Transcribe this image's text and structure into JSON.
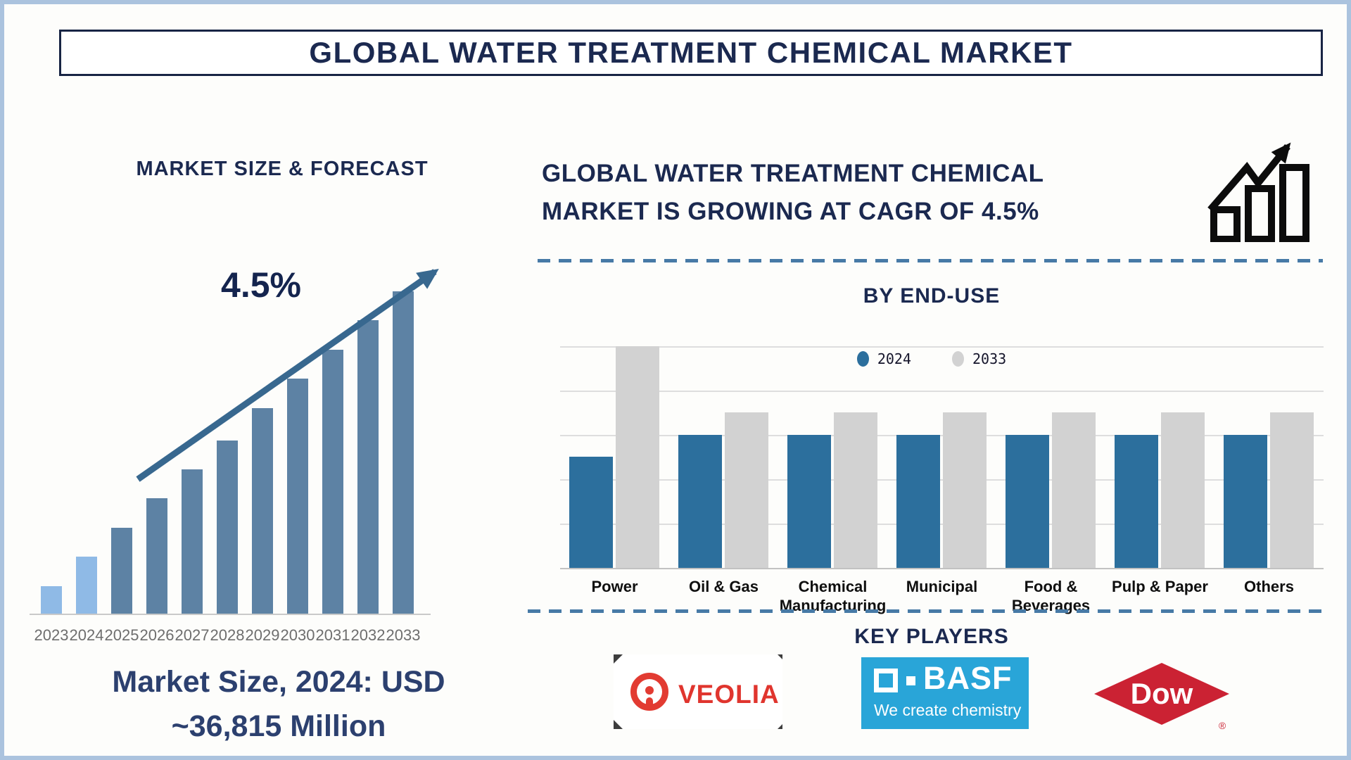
{
  "page_title": "GLOBAL WATER TREATMENT CHEMICAL MARKET",
  "colors": {
    "navy": "#1b2950",
    "caption_navy": "#2c406f",
    "steel_blue": "#5d82a4",
    "light_blue": "#8fbae6",
    "arrow_blue": "#38688f",
    "enduse_blue": "#2c6f9d",
    "enduse_gray": "#d2d2d2",
    "dashed_blue": "#477aa6",
    "year_gray": "#6e6e6e",
    "basf_bg": "#29a5d8",
    "veolia_red": "#e0352e",
    "dow_red": "#cb2233",
    "icon_black": "#0c0c0c"
  },
  "left_panel": {
    "section_title": "MARKET SIZE & FORECAST",
    "cagr_annotation": "4.5%",
    "caption_line1": "Market Size, 2024: USD",
    "caption_line2": "~36,815 Million"
  },
  "right_panel": {
    "headline_line1": "GLOBAL WATER TREATMENT CHEMICAL",
    "headline_line2": "MARKET IS GROWING AT CAGR OF 4.5%",
    "growth_icon": "growth-bars-arrow-icon"
  },
  "end_use": {
    "section_title": "BY END-USE"
  },
  "key_players": {
    "section_title": "KEY PLAYERS",
    "veolia": {
      "name": "VEOLIA",
      "logo": "veolia-ring-icon"
    },
    "basf": {
      "name": "BASF",
      "tagline": "We create chemistry",
      "logo": "basf-squares-icon"
    },
    "dow": {
      "name": "Dow",
      "registered_mark": "®",
      "logo": "dow-diamond-icon"
    }
  },
  "chart_data": [
    {
      "type": "bar",
      "name": "market-size-forecast",
      "title": "MARKET SIZE & FORECAST",
      "categories": [
        "2023",
        "2024",
        "2025",
        "2026",
        "2027",
        "2028",
        "2029",
        "2030",
        "2031",
        "2032",
        "2033"
      ],
      "values_relative_pct": [
        9,
        18,
        27,
        36,
        45,
        54,
        64,
        73,
        82,
        91,
        100
      ],
      "highlight_categories": [
        "2023",
        "2024"
      ],
      "bar_color_default": "#5d82a4",
      "bar_color_highlight": "#8fbae6",
      "annotation": "4.5%",
      "annotation_meaning": "CAGR trend arrow",
      "known_point": {
        "year": "2024",
        "value_usd_million": 36815
      },
      "y_axis_labels_visible": false,
      "grid": false
    },
    {
      "type": "bar",
      "name": "by-end-use",
      "title": "BY END-USE",
      "categories": [
        "Power",
        "Oil & Gas",
        "Chemical Manufacturing",
        "Municipal",
        "Food & Beverages",
        "Pulp & Paper",
        "Others"
      ],
      "series": [
        {
          "name": "2024",
          "color": "#2c6f9d",
          "values_gridline_units": [
            2.5,
            3,
            3,
            3,
            3,
            3,
            3
          ]
        },
        {
          "name": "2033",
          "color": "#d2d2d2",
          "values_gridline_units": [
            5,
            3.5,
            3.5,
            3.5,
            3.5,
            3.5,
            3.5
          ]
        }
      ],
      "y_axis": {
        "min": 0,
        "max": 5,
        "gridlines": 6,
        "labels_visible": false
      },
      "legend_position": "top",
      "grid": true
    }
  ]
}
